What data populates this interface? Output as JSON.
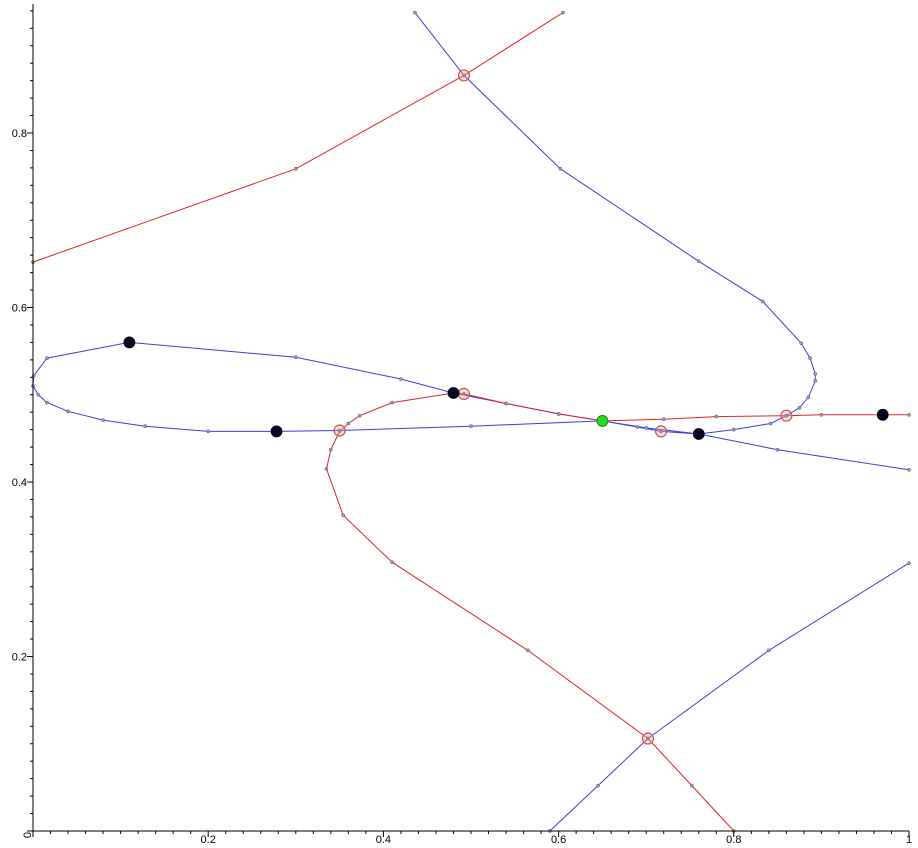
{
  "chart_data": {
    "type": "line",
    "title": "",
    "xlabel": "",
    "ylabel": "",
    "xlim": [
      0,
      1
    ],
    "ylim": [
      0,
      0.95
    ],
    "x_tick_labels": [
      "0",
      "0.2",
      "0.4",
      "0.6",
      "0.8",
      "1"
    ],
    "y_tick_labels": [
      "0",
      "0.2",
      "0.4",
      "0.6",
      "0.8"
    ],
    "x_ticks": [
      0,
      0.2,
      0.4,
      0.6,
      0.8,
      1
    ],
    "y_ticks": [
      0,
      0.2,
      0.4,
      0.6,
      0.8
    ],
    "grid": false,
    "colors": {
      "blue": "#3c3cdc",
      "red": "#e02424",
      "green": "#22dd22",
      "black": "#050522",
      "marker_ring": "#d05050"
    },
    "series": [
      {
        "color": "blue",
        "points": [
          [
            0.436,
            0.938
          ],
          [
            0.492,
            0.866
          ],
          [
            0.602,
            0.759
          ],
          [
            0.76,
            0.653
          ],
          [
            0.833,
            0.607
          ],
          [
            0.877,
            0.559
          ],
          [
            0.887,
            0.542
          ],
          [
            0.893,
            0.524
          ],
          [
            0.893,
            0.516
          ],
          [
            0.885,
            0.497
          ],
          [
            0.875,
            0.485
          ],
          [
            0.86,
            0.476
          ],
          [
            0.842,
            0.467
          ],
          [
            0.8,
            0.46
          ],
          [
            0.76,
            0.455
          ],
          [
            0.717,
            0.458
          ],
          [
            0.69,
            0.463
          ],
          [
            0.65,
            0.47
          ],
          [
            0.5,
            0.464
          ],
          [
            0.35,
            0.459
          ],
          [
            0.278,
            0.458
          ],
          [
            0.2,
            0.458
          ],
          [
            0.128,
            0.464
          ],
          [
            0.08,
            0.471
          ],
          [
            0.04,
            0.481
          ],
          [
            0.016,
            0.491
          ],
          [
            0.006,
            0.5
          ],
          [
            0.0,
            0.51
          ],
          [
            0.001,
            0.522
          ],
          [
            0.016,
            0.542
          ],
          [
            0.11,
            0.56
          ],
          [
            0.3,
            0.543
          ],
          [
            0.42,
            0.518
          ],
          [
            0.48,
            0.502
          ],
          [
            0.54,
            0.49
          ],
          [
            0.6,
            0.478
          ],
          [
            0.65,
            0.47
          ],
          [
            0.7,
            0.462
          ],
          [
            0.76,
            0.455
          ],
          [
            0.85,
            0.437
          ],
          [
            1.0,
            0.414
          ]
        ]
      },
      {
        "color": "red",
        "points": [
          [
            0.0,
            0.652
          ],
          [
            0.3,
            0.759
          ],
          [
            0.492,
            0.866
          ],
          [
            0.605,
            0.938
          ]
        ]
      },
      {
        "color": "red",
        "points": [
          [
            0.8,
            0.0
          ],
          [
            0.752,
            0.052
          ],
          [
            0.702,
            0.106
          ],
          [
            0.565,
            0.207
          ],
          [
            0.41,
            0.308
          ],
          [
            0.354,
            0.362
          ],
          [
            0.335,
            0.415
          ],
          [
            0.34,
            0.437
          ],
          [
            0.35,
            0.458
          ],
          [
            0.36,
            0.467
          ],
          [
            0.373,
            0.476
          ],
          [
            0.41,
            0.491
          ],
          [
            0.48,
            0.502
          ],
          [
            0.492,
            0.501
          ],
          [
            0.54,
            0.49
          ],
          [
            0.6,
            0.478
          ],
          [
            0.65,
            0.47
          ],
          [
            0.72,
            0.472
          ],
          [
            0.78,
            0.475
          ],
          [
            0.86,
            0.476
          ],
          [
            0.9,
            0.477
          ],
          [
            0.97,
            0.477
          ],
          [
            1.0,
            0.477
          ]
        ]
      },
      {
        "color": "blue",
        "points": [
          [
            0.59,
            0.0
          ],
          [
            0.645,
            0.052
          ],
          [
            0.702,
            0.106
          ],
          [
            0.84,
            0.207
          ],
          [
            1.0,
            0.307
          ]
        ]
      }
    ],
    "highlighted_points": {
      "ringed": [
        [
          0.492,
          0.866
        ],
        [
          0.492,
          0.501
        ],
        [
          0.35,
          0.459
        ],
        [
          0.717,
          0.458
        ],
        [
          0.86,
          0.476
        ],
        [
          0.702,
          0.106
        ]
      ],
      "black": [
        [
          0.11,
          0.56
        ],
        [
          0.278,
          0.458
        ],
        [
          0.48,
          0.502
        ],
        [
          0.76,
          0.455
        ],
        [
          0.97,
          0.477
        ]
      ],
      "green": [
        [
          0.65,
          0.47
        ]
      ]
    }
  }
}
